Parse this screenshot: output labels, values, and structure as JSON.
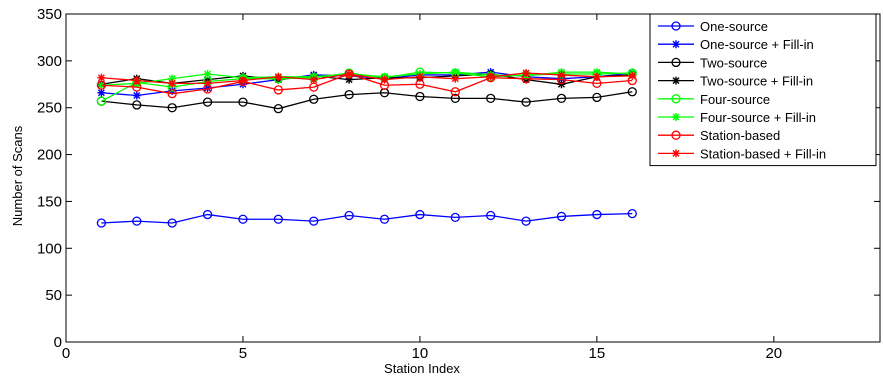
{
  "chart_data": {
    "type": "line",
    "xlabel": "Station Index",
    "ylabel": "Number of Scans",
    "xlim": [
      0,
      23
    ],
    "ylim": [
      0,
      350
    ],
    "xticks": [
      0,
      5,
      10,
      15,
      20
    ],
    "yticks": [
      0,
      50,
      100,
      150,
      200,
      250,
      300,
      350
    ],
    "grid": false,
    "legend_position": "top-right",
    "x": [
      1,
      2,
      3,
      4,
      5,
      6,
      7,
      8,
      9,
      10,
      11,
      12,
      13,
      14,
      15,
      16
    ],
    "series": [
      {
        "name": "One-source",
        "color": "#0000ff",
        "marker": "circle",
        "values": [
          127,
          129,
          127,
          136,
          131,
          131,
          129,
          135,
          131,
          136,
          133,
          135,
          129,
          134,
          136,
          137
        ]
      },
      {
        "name": "One-source + Fill-in",
        "color": "#0000ff",
        "marker": "star",
        "values": [
          266,
          263,
          268,
          271,
          275,
          280,
          285,
          284,
          281,
          285,
          285,
          288,
          283,
          281,
          283,
          287
        ]
      },
      {
        "name": "Two-source",
        "color": "#000000",
        "marker": "circle",
        "values": [
          257,
          253,
          250,
          256,
          256,
          249,
          259,
          264,
          266,
          262,
          260,
          260,
          256,
          260,
          261,
          267
        ]
      },
      {
        "name": "Two-source + Fill-in",
        "color": "#000000",
        "marker": "star",
        "values": [
          275,
          281,
          276,
          280,
          284,
          280,
          284,
          280,
          282,
          282,
          284,
          286,
          280,
          275,
          283,
          285
        ]
      },
      {
        "name": "Four-source",
        "color": "#00ff00",
        "marker": "circle",
        "values": [
          257,
          277,
          272,
          278,
          281,
          281,
          282,
          287,
          282,
          288,
          287,
          283,
          285,
          286,
          286,
          287
        ]
      },
      {
        "name": "Four-source + Fill-in",
        "color": "#00ff00",
        "marker": "star",
        "values": [
          274,
          276,
          281,
          286,
          282,
          283,
          283,
          286,
          283,
          286,
          288,
          285,
          284,
          288,
          288,
          286
        ]
      },
      {
        "name": "Station-based",
        "color": "#ff0000",
        "marker": "circle",
        "values": [
          274,
          272,
          265,
          270,
          278,
          269,
          272,
          286,
          274,
          275,
          267,
          282,
          281,
          280,
          276,
          279
        ]
      },
      {
        "name": "Station-based + Fill-in",
        "color": "#ff0000",
        "marker": "star",
        "values": [
          282,
          279,
          276,
          276,
          279,
          283,
          280,
          286,
          280,
          283,
          281,
          283,
          287,
          285,
          283,
          284
        ]
      }
    ]
  }
}
